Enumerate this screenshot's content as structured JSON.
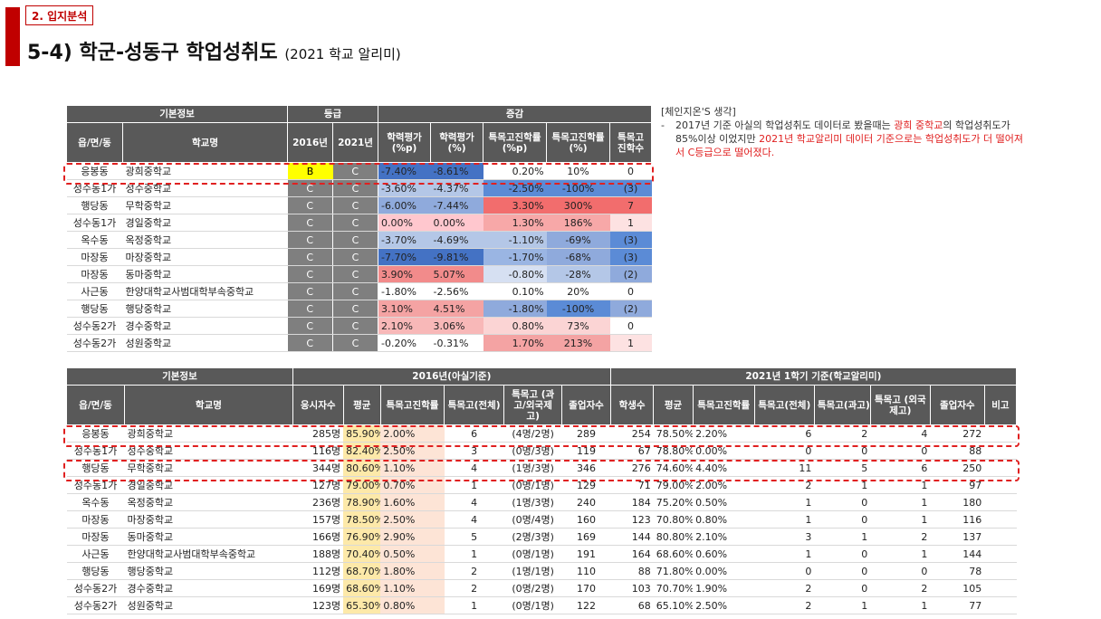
{
  "section_tag": "2. 입지분석",
  "title": "5-4) 학군-성동구 학업성취도",
  "title_sub": "(2021 학교 알리미)",
  "note": {
    "heading": "[체인지온'S 생각]",
    "dash": "-",
    "part1": "2017년 기준 아실의 학업성취도 데이터로 봤을때는 ",
    "part2": "광희 중학교",
    "part3": "의 학업성취도가 85%이상 이었지만 ",
    "part4": "2021년 학교알리미 데이터 기준으로는 학업성취도가 더 떨어져서 C등급으로 떨어졌다."
  },
  "t1": {
    "group_basic": "기본정보",
    "group_grade": "등급",
    "group_change": "증감",
    "h_region": "읍/면/동",
    "h_school": "학교명",
    "h_2016": "2016년",
    "h_2021": "2021년",
    "h_c1": "학력평가 (%p)",
    "h_c2": "학력평가 (%)",
    "h_c3": "특목고진학률 (%p)",
    "h_c4": "특목고진학률 (%)",
    "h_c5": "특목고 진학수",
    "rows": [
      {
        "region": "응봉동",
        "school": "광희중학교",
        "g16": "B",
        "g21": "C",
        "c1": "-7.40%",
        "c2": "-8.61%",
        "c3": "0.20%",
        "c4": "10%",
        "c5": "0"
      },
      {
        "region": "성수동1가",
        "school": "성수중학교",
        "g16": "C",
        "g21": "C",
        "c1": "-3.60%",
        "c2": "-4.37%",
        "c3": "-2.50%",
        "c4": "-100%",
        "c5": "(3)"
      },
      {
        "region": "행당동",
        "school": "무학중학교",
        "g16": "C",
        "g21": "C",
        "c1": "-6.00%",
        "c2": "-7.44%",
        "c3": "3.30%",
        "c4": "300%",
        "c5": "7"
      },
      {
        "region": "성수동1가",
        "school": "경일중학교",
        "g16": "C",
        "g21": "C",
        "c1": "0.00%",
        "c2": "0.00%",
        "c3": "1.30%",
        "c4": "186%",
        "c5": "1"
      },
      {
        "region": "옥수동",
        "school": "옥정중학교",
        "g16": "C",
        "g21": "C",
        "c1": "-3.70%",
        "c2": "-4.69%",
        "c3": "-1.10%",
        "c4": "-69%",
        "c5": "(3)"
      },
      {
        "region": "마장동",
        "school": "마장중학교",
        "g16": "C",
        "g21": "C",
        "c1": "-7.70%",
        "c2": "-9.81%",
        "c3": "-1.70%",
        "c4": "-68%",
        "c5": "(3)"
      },
      {
        "region": "마장동",
        "school": "동마중학교",
        "g16": "C",
        "g21": "C",
        "c1": "3.90%",
        "c2": "5.07%",
        "c3": "-0.80%",
        "c4": "-28%",
        "c5": "(2)"
      },
      {
        "region": "사근동",
        "school": "한양대학교사범대학부속중학교",
        "g16": "C",
        "g21": "C",
        "c1": "-1.80%",
        "c2": "-2.56%",
        "c3": "0.10%",
        "c4": "20%",
        "c5": "0"
      },
      {
        "region": "행당동",
        "school": "행당중학교",
        "g16": "C",
        "g21": "C",
        "c1": "3.10%",
        "c2": "4.51%",
        "c3": "-1.80%",
        "c4": "-100%",
        "c5": "(2)"
      },
      {
        "region": "성수동2가",
        "school": "경수중학교",
        "g16": "C",
        "g21": "C",
        "c1": "2.10%",
        "c2": "3.06%",
        "c3": "0.80%",
        "c4": "73%",
        "c5": "0"
      },
      {
        "region": "성수동2가",
        "school": "성원중학교",
        "g16": "C",
        "g21": "C",
        "c1": "-0.20%",
        "c2": "-0.31%",
        "c3": "1.70%",
        "c4": "213%",
        "c5": "1"
      }
    ],
    "colors": {
      "c1": [
        "#4472c4",
        "#b4c7e7",
        "#8faadc",
        "#ffc7ce",
        "#b4c7e7",
        "#4472c4",
        "#f28b8b",
        "#ffffff",
        "#f4a3a3",
        "#f8b8b8",
        "#ffffff"
      ],
      "c2": [
        "#4472c4",
        "#b4c7e7",
        "#8faadc",
        "#ffc7ce",
        "#b4c7e7",
        "#4472c4",
        "#f28b8b",
        "#ffffff",
        "#f4a3a3",
        "#f8b8b8",
        "#ffffff"
      ],
      "c3": [
        "#ffffff",
        "#5b8bd6",
        "#f26d6d",
        "#f7a8a8",
        "#b4c7e7",
        "#9ab5e3",
        "#d6e0f2",
        "#ffffff",
        "#8faadc",
        "#fbd4d4",
        "#f4a3a3"
      ],
      "c4": [
        "#ffffff",
        "#5b8bd6",
        "#f26d6d",
        "#f7a8a8",
        "#8faadc",
        "#8faadc",
        "#b4c7e7",
        "#ffffff",
        "#5b8bd6",
        "#fbd4d4",
        "#f4a3a3"
      ],
      "c5": [
        "#ffffff",
        "#5b8bd6",
        "#f26d6d",
        "#fde2e2",
        "#5b8bd6",
        "#5b8bd6",
        "#8faadc",
        "#ffffff",
        "#8faadc",
        "#ffffff",
        "#fde2e2"
      ]
    }
  },
  "t2": {
    "group_basic": "기본정보",
    "group_2016": "2016년(아실기준)",
    "group_2021": "2021년 1학기 기준(학교알리미)",
    "h_region": "읍/면/동",
    "h_school": "학교명",
    "h_exam": "응시자수",
    "h_avg": "평균",
    "h_rate": "특목고진학률",
    "h_total": "특목고(전체)",
    "h_sci": "특목고 (과고/외국제 고)",
    "h_grad": "졸업자수",
    "h_students": "학생수",
    "h_avg2": "평균",
    "h_rate2": "특목고진학률",
    "h_total2": "특목고(전체)",
    "h_sci2": "특목고(과고)",
    "h_for2": "특목고 (외국제고)",
    "h_grad2": "졸업자수",
    "h_note": "비고",
    "rows": [
      {
        "region": "응봉동",
        "school": "광희중학교",
        "exam": "285명",
        "avg": "85.90%",
        "rate": "2.00%",
        "total": "6",
        "sci": "(4명/2명)",
        "grad": "289",
        "st": "254",
        "avg2": "78.50%",
        "rate2": "2.20%",
        "total2": "6",
        "sci2": "2",
        "for2": "4",
        "grad2": "272"
      },
      {
        "region": "성수동1가",
        "school": "성수중학교",
        "exam": "116명",
        "avg": "82.40%",
        "rate": "2.50%",
        "total": "3",
        "sci": "(0명/3명)",
        "grad": "119",
        "st": "67",
        "avg2": "78.80%",
        "rate2": "0.00%",
        "total2": "0",
        "sci2": "0",
        "for2": "0",
        "grad2": "88"
      },
      {
        "region": "행당동",
        "school": "무학중학교",
        "exam": "344명",
        "avg": "80.60%",
        "rate": "1.10%",
        "total": "4",
        "sci": "(1명/3명)",
        "grad": "346",
        "st": "276",
        "avg2": "74.60%",
        "rate2": "4.40%",
        "total2": "11",
        "sci2": "5",
        "for2": "6",
        "grad2": "250"
      },
      {
        "region": "성수동1가",
        "school": "경일중학교",
        "exam": "127명",
        "avg": "79.00%",
        "rate": "0.70%",
        "total": "1",
        "sci": "(0명/1명)",
        "grad": "129",
        "st": "71",
        "avg2": "79.00%",
        "rate2": "2.00%",
        "total2": "2",
        "sci2": "1",
        "for2": "1",
        "grad2": "97"
      },
      {
        "region": "옥수동",
        "school": "옥정중학교",
        "exam": "236명",
        "avg": "78.90%",
        "rate": "1.60%",
        "total": "4",
        "sci": "(1명/3명)",
        "grad": "240",
        "st": "184",
        "avg2": "75.20%",
        "rate2": "0.50%",
        "total2": "1",
        "sci2": "0",
        "for2": "1",
        "grad2": "180"
      },
      {
        "region": "마장동",
        "school": "마장중학교",
        "exam": "157명",
        "avg": "78.50%",
        "rate": "2.50%",
        "total": "4",
        "sci": "(0명/4명)",
        "grad": "160",
        "st": "123",
        "avg2": "70.80%",
        "rate2": "0.80%",
        "total2": "1",
        "sci2": "0",
        "for2": "1",
        "grad2": "116"
      },
      {
        "region": "마장동",
        "school": "동마중학교",
        "exam": "166명",
        "avg": "76.90%",
        "rate": "2.90%",
        "total": "5",
        "sci": "(2명/3명)",
        "grad": "169",
        "st": "144",
        "avg2": "80.80%",
        "rate2": "2.10%",
        "total2": "3",
        "sci2": "1",
        "for2": "2",
        "grad2": "137"
      },
      {
        "region": "사근동",
        "school": "한양대학교사범대학부속중학교",
        "exam": "188명",
        "avg": "70.40%",
        "rate": "0.50%",
        "total": "1",
        "sci": "(0명/1명)",
        "grad": "191",
        "st": "164",
        "avg2": "68.60%",
        "rate2": "0.60%",
        "total2": "1",
        "sci2": "0",
        "for2": "1",
        "grad2": "144"
      },
      {
        "region": "행당동",
        "school": "행당중학교",
        "exam": "112명",
        "avg": "68.70%",
        "rate": "1.80%",
        "total": "2",
        "sci": "(1명/1명)",
        "grad": "110",
        "st": "88",
        "avg2": "71.80%",
        "rate2": "0.00%",
        "total2": "0",
        "sci2": "0",
        "for2": "0",
        "grad2": "78"
      },
      {
        "region": "성수동2가",
        "school": "경수중학교",
        "exam": "169명",
        "avg": "68.60%",
        "rate": "1.10%",
        "total": "2",
        "sci": "(0명/2명)",
        "grad": "170",
        "st": "103",
        "avg2": "70.70%",
        "rate2": "1.90%",
        "total2": "2",
        "sci2": "0",
        "for2": "2",
        "grad2": "105"
      },
      {
        "region": "성수동2가",
        "school": "성원중학교",
        "exam": "123명",
        "avg": "65.30%",
        "rate": "0.80%",
        "total": "1",
        "sci": "(0명/1명)",
        "grad": "122",
        "st": "68",
        "avg2": "65.10%",
        "rate2": "2.50%",
        "total2": "2",
        "sci2": "1",
        "for2": "1",
        "grad2": "77"
      }
    ],
    "avg_color": "#fde9a9",
    "rate_color": "#fde4d6"
  }
}
